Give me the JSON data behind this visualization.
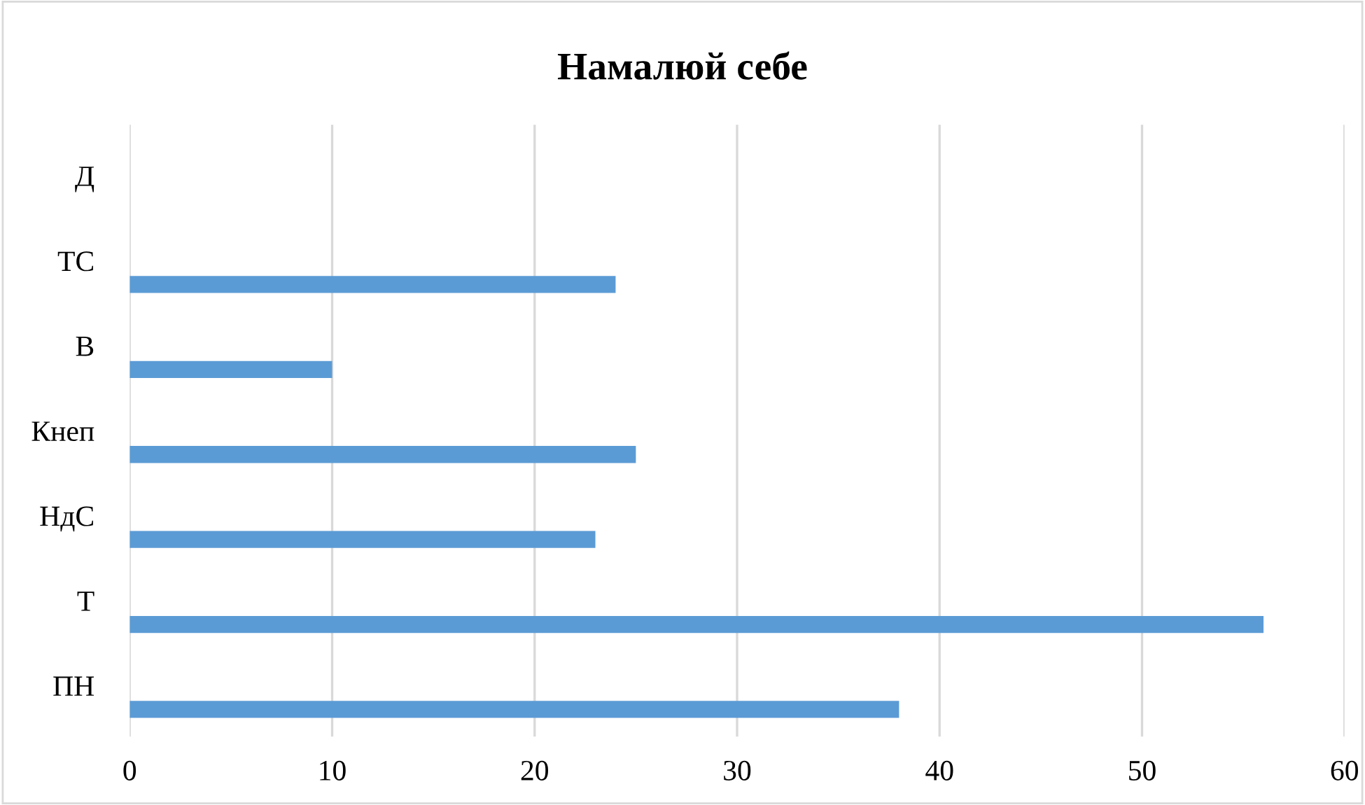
{
  "chart_data": {
    "type": "bar",
    "orientation": "horizontal",
    "title": "Намалюй себе",
    "categories": [
      "Д",
      "ТС",
      "В",
      "Кнеп",
      "НдС",
      "Т",
      "ПН"
    ],
    "values": [
      null,
      24,
      10,
      25,
      23,
      56,
      38
    ],
    "color": "#5b9bd5",
    "xlim": [
      0,
      60
    ],
    "xticks": [
      0,
      10,
      20,
      30,
      40,
      50,
      60
    ],
    "grid": "x"
  }
}
